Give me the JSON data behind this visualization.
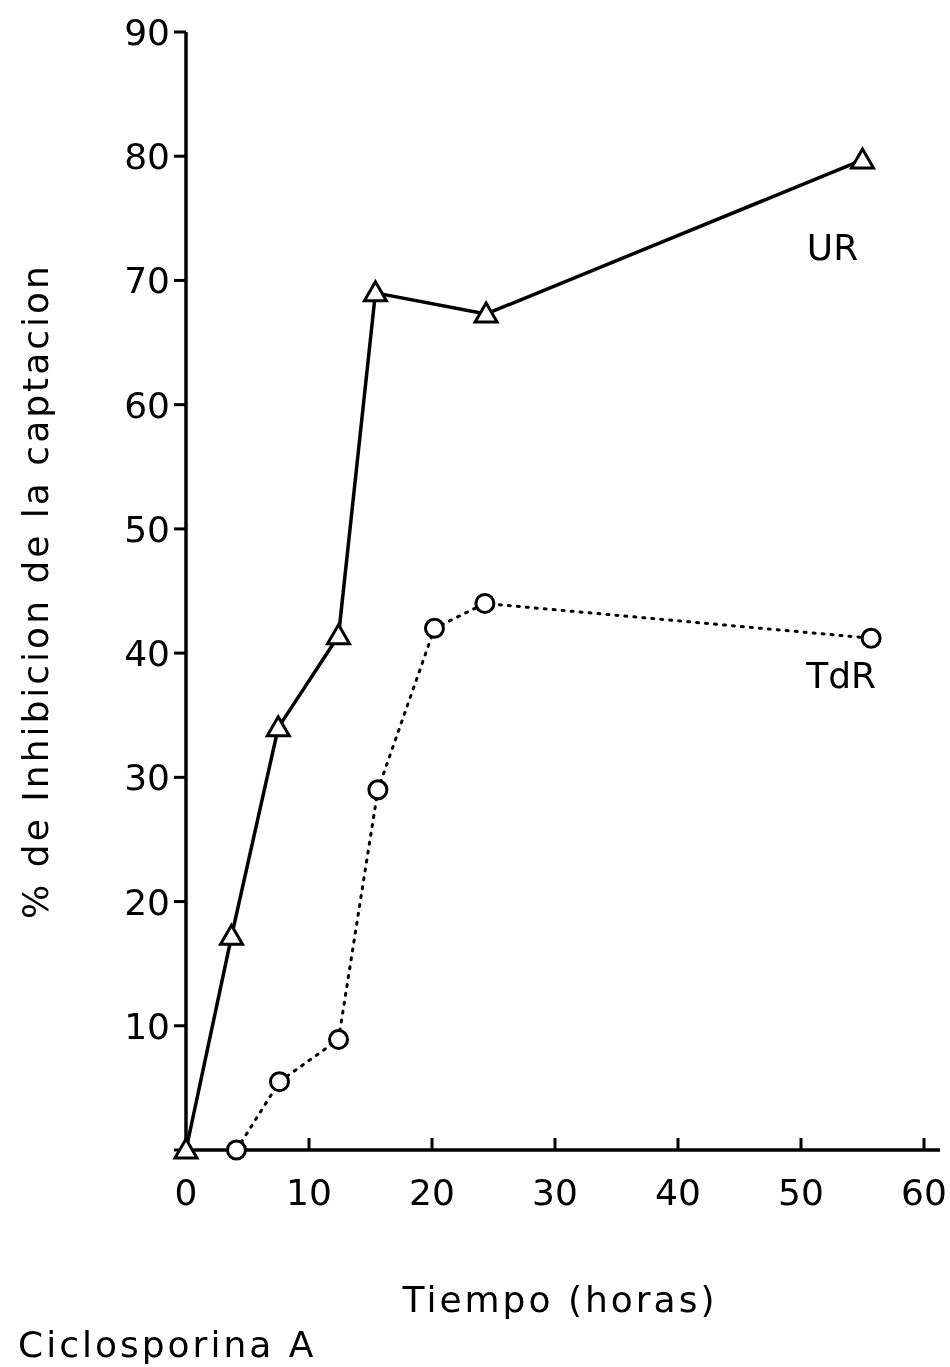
{
  "chart_data": {
    "type": "line",
    "xlabel": "Tiempo  (horas)",
    "ylabel": "% de Inhibicion de la captacion",
    "annotations": [
      "Ciclosporina A"
    ],
    "xlim": [
      0,
      61.3
    ],
    "ylim": [
      0,
      90
    ],
    "xticks": [
      0,
      10,
      20,
      30,
      40,
      50,
      60
    ],
    "yticks": [
      {
        "value": 0,
        "label": null
      },
      10,
      20,
      30,
      40,
      50,
      60,
      70,
      80,
      90
    ],
    "grid": false,
    "series": [
      {
        "name": "UR",
        "color": "#000000",
        "marker": "triangle",
        "line_style": "solid",
        "x": [
          0,
          3.7,
          7.5,
          12.4,
          15.4,
          24.4,
          55
        ],
        "values": [
          0,
          17.2,
          34,
          41.4,
          69,
          67.3,
          79.7
        ]
      },
      {
        "name": "TdR",
        "color": "#000000",
        "marker": "circle",
        "line_style": "dotted",
        "x": [
          4.1,
          7.6,
          12.4,
          15.6,
          20.2,
          24.3,
          55.7
        ],
        "values": [
          0,
          5.5,
          8.9,
          29,
          42,
          44,
          41.2
        ]
      }
    ]
  }
}
